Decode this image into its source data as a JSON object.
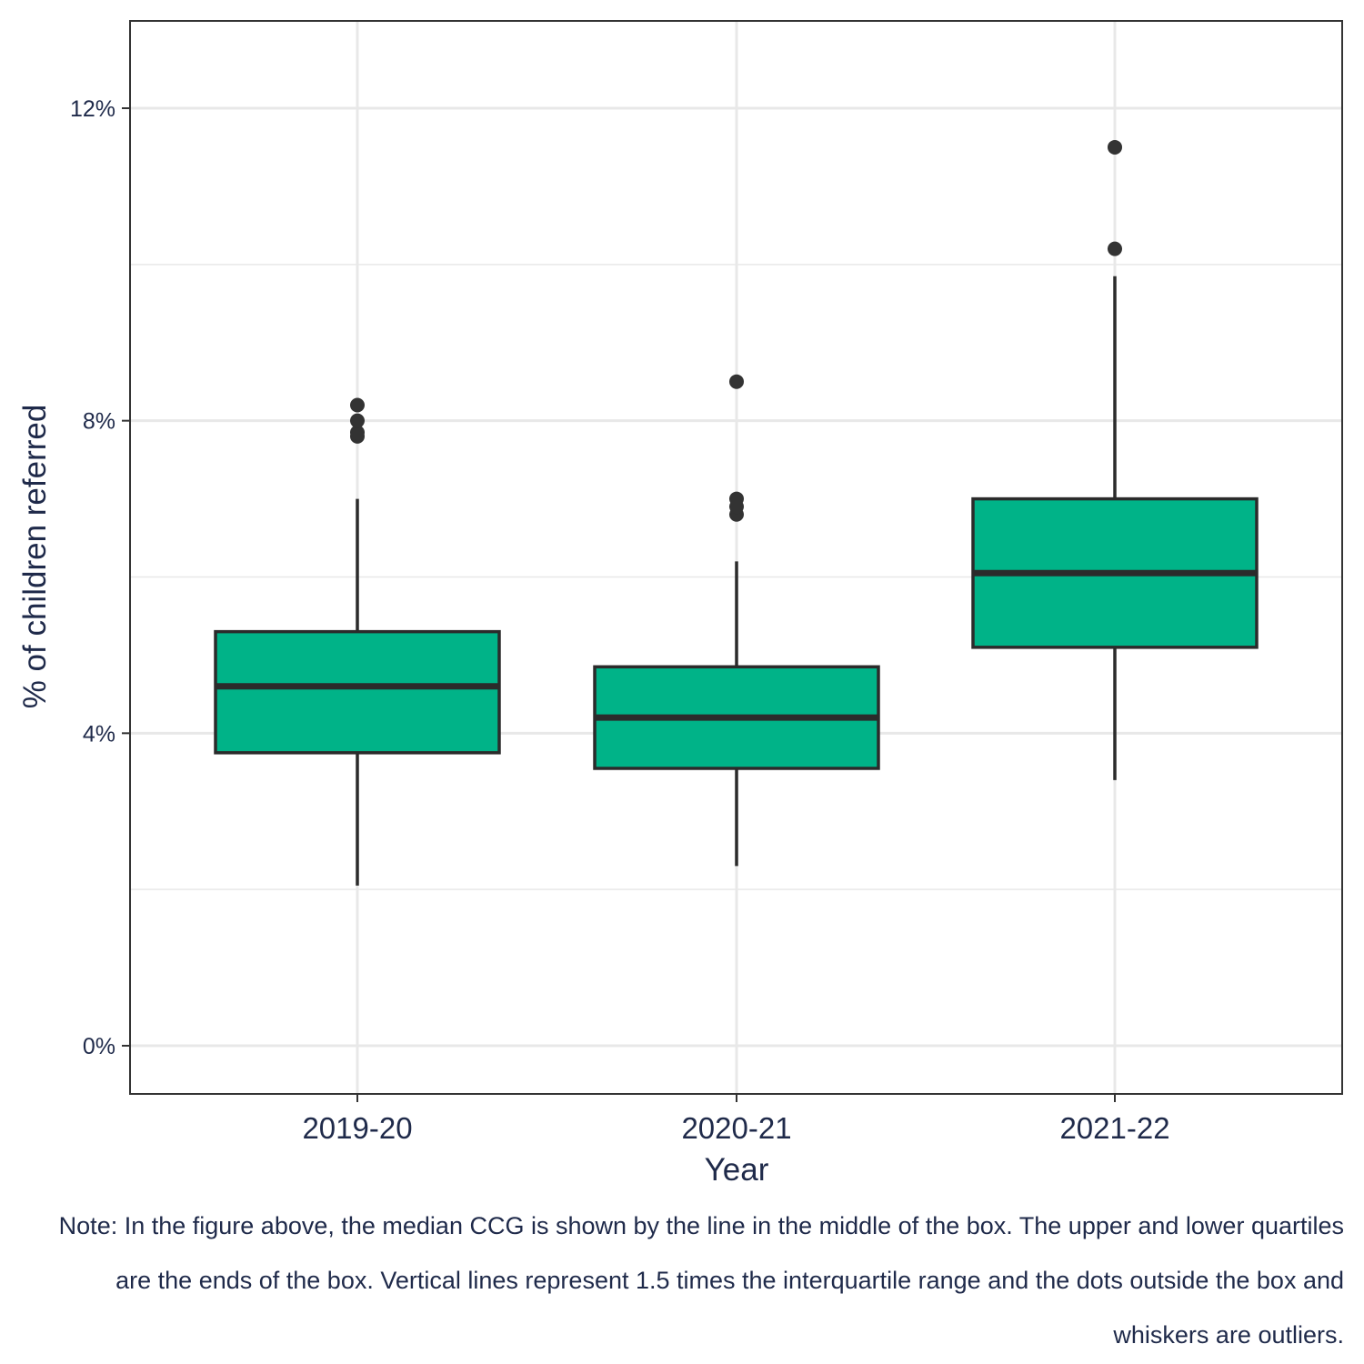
{
  "chart_data": {
    "type": "boxplot",
    "xlabel": "Year",
    "ylabel": "% of children referred",
    "ylim": [
      -0.6,
      13.1
    ],
    "yticks": [
      0,
      4,
      8,
      12
    ],
    "ytick_labels": [
      "0%",
      "4%",
      "8%",
      "12%"
    ],
    "grid": true,
    "categories": [
      "2019-20",
      "2020-21",
      "2021-22"
    ],
    "boxes": [
      {
        "category": "2019-20",
        "whisker_low": 2.05,
        "q1": 3.75,
        "median": 4.6,
        "q3": 5.3,
        "whisker_high": 7.0,
        "outliers": [
          7.8,
          7.85,
          8.0,
          8.2
        ]
      },
      {
        "category": "2020-21",
        "whisker_low": 2.3,
        "q1": 3.55,
        "median": 4.2,
        "q3": 4.85,
        "whisker_high": 6.2,
        "outliers": [
          6.8,
          6.9,
          7.0,
          8.5
        ]
      },
      {
        "category": "2021-22",
        "whisker_low": 3.4,
        "q1": 5.1,
        "median": 6.05,
        "q3": 7.0,
        "whisker_high": 9.85,
        "outliers": [
          10.2,
          11.5
        ]
      }
    ],
    "colors": {
      "box_fill": "#00b388",
      "box_line": "#2b2b2b",
      "outlier": "#333333",
      "grid": "#e8e8e8",
      "text": "#1f2a4a"
    }
  },
  "note": "Note: In the figure above, the median CCG is shown by the line in the middle of the box. The upper and lower quartiles are the ends of the box. Vertical lines represent 1.5 times the interquartile range and the dots outside the box and whiskers are outliers."
}
